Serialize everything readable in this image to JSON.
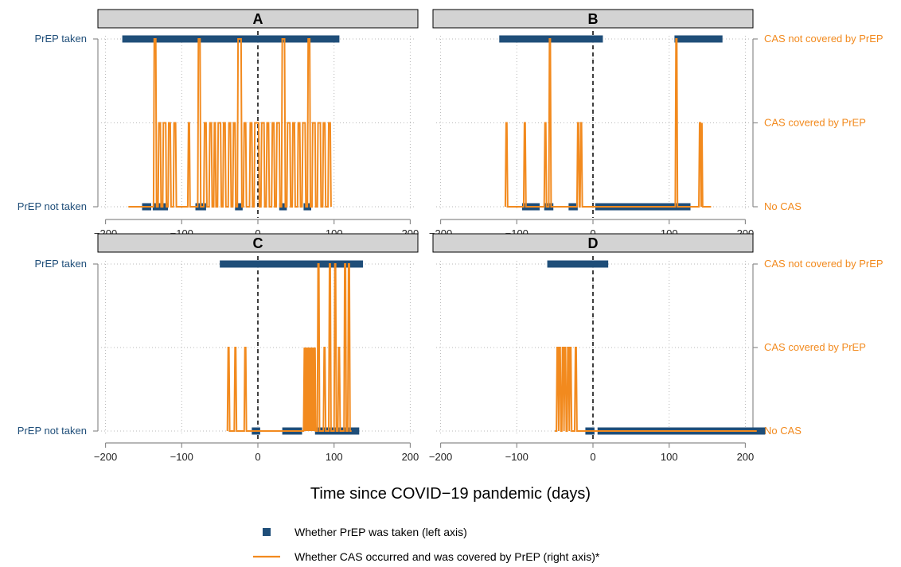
{
  "figure": {
    "x_axis_label": "Time since COVID−19 pandemic (days)",
    "x_ticks": [
      -200,
      -100,
      0,
      100,
      200
    ],
    "x_tick_labels": [
      "−200",
      "−100",
      "0",
      "100",
      "200"
    ],
    "xlim": [
      -210,
      210
    ],
    "left_axis": {
      "ticks": [
        {
          "value": 0,
          "label": "PrEP not taken"
        },
        {
          "value": 1,
          "label": "PrEP taken"
        }
      ]
    },
    "right_axis": {
      "ticks": [
        {
          "value": 0,
          "label": "No CAS"
        },
        {
          "value": 1,
          "label": "CAS covered by PrEP"
        },
        {
          "value": 2,
          "label": "CAS not covered by PrEP"
        }
      ]
    },
    "colors": {
      "prep": "#1f4e79",
      "cas": "#f28a1e",
      "strip_fill": "#d3d3d3",
      "left_tick_text": "#1f4e79",
      "right_tick_text": "#f28a1e"
    },
    "legend": {
      "items": [
        {
          "label": "Whether PrEP was taken (left axis)",
          "marker": "square",
          "color": "#1f4e79"
        },
        {
          "label": "Whether CAS occurred and was covered by PrEP (right axis)*",
          "marker": "line",
          "color": "#f28a1e"
        }
      ]
    }
  },
  "chart_data": [
    {
      "type": "line",
      "title": "A",
      "prep_taken_intervals": [
        [
          -178,
          107
        ]
      ],
      "prep_not_taken_intervals": [
        [
          -152,
          -140
        ],
        [
          -138,
          -118
        ],
        [
          -82,
          -68
        ],
        [
          -30,
          -20
        ],
        [
          28,
          38
        ],
        [
          60,
          70
        ]
      ],
      "cas_x": [
        -170,
        -137,
        -136,
        -134,
        -133,
        -131,
        -130,
        -128,
        -127,
        -125,
        -124,
        -121,
        -120,
        -118,
        -117,
        -115,
        -114,
        -111,
        -110,
        -108,
        -107,
        -92,
        -91,
        -90,
        -89,
        -79,
        -78,
        -76,
        -75,
        -71,
        -70,
        -68,
        -67,
        -64,
        -63,
        -61,
        -60,
        -58,
        -57,
        -56,
        -55,
        -53,
        -52,
        -49,
        -48,
        -46,
        -45,
        -43,
        -42,
        -39,
        -38,
        -36,
        -35,
        -33,
        -32,
        -30,
        -29,
        -27,
        -26,
        -22,
        -21,
        -19,
        -18,
        -16,
        -15,
        -11,
        -10,
        -8,
        -7,
        -5,
        -4,
        1,
        2,
        4,
        5,
        8,
        9,
        11,
        12,
        14,
        15,
        18,
        19,
        21,
        22,
        24,
        25,
        28,
        29,
        31,
        32,
        35,
        36,
        38,
        39,
        42,
        43,
        45,
        46,
        48,
        49,
        52,
        53,
        55,
        56,
        58,
        59,
        62,
        63,
        65,
        66,
        68,
        69,
        71,
        72,
        75,
        76,
        78,
        79,
        82,
        83,
        85,
        86,
        88,
        89,
        92,
        93,
        95,
        96,
        98,
        99
      ],
      "cas_y": [
        0,
        0,
        2,
        2,
        0,
        0,
        1,
        1,
        0,
        0,
        1,
        1,
        0,
        0,
        1,
        1,
        0,
        0,
        1,
        1,
        0,
        0,
        1,
        1,
        0,
        0,
        2,
        2,
        0,
        0,
        1,
        1,
        0,
        0,
        1,
        1,
        0,
        0,
        1,
        1,
        0,
        0,
        1,
        1,
        0,
        0,
        1,
        1,
        0,
        0,
        1,
        1,
        0,
        0,
        1,
        1,
        0,
        0,
        2,
        2,
        0,
        0,
        1,
        1,
        0,
        0,
        1,
        1,
        0,
        0,
        1,
        1,
        0,
        0,
        1,
        1,
        0,
        0,
        1,
        1,
        0,
        0,
        1,
        1,
        0,
        0,
        1,
        1,
        0,
        0,
        2,
        2,
        0,
        0,
        1,
        1,
        0,
        0,
        1,
        1,
        0,
        0,
        1,
        1,
        0,
        0,
        1,
        1,
        0,
        0,
        2,
        2,
        0,
        0,
        1,
        1,
        0,
        0,
        1,
        1,
        0,
        0,
        1,
        1,
        0,
        0,
        1,
        1,
        0
      ]
    },
    {
      "type": "line",
      "title": "B",
      "prep_taken_intervals": [
        [
          -123,
          13
        ],
        [
          107,
          170
        ]
      ],
      "prep_not_taken_intervals": [
        [
          -93,
          -70
        ],
        [
          -64,
          -52
        ],
        [
          -32,
          -20
        ],
        [
          3,
          128
        ]
      ],
      "cas_x": [
        -115,
        -114,
        -113,
        -112,
        -91,
        -90,
        -89,
        -88,
        -64,
        -63,
        -62,
        -61,
        -58,
        -57,
        -56,
        -55,
        -21,
        -20,
        -19,
        -18,
        -17,
        -16,
        -15,
        -14,
        108,
        109,
        110,
        111,
        139,
        140,
        141,
        142,
        143,
        144,
        155
      ],
      "cas_y": [
        0,
        1,
        1,
        0,
        0,
        1,
        1,
        0,
        0,
        1,
        1,
        0,
        0,
        2,
        2,
        0,
        0,
        1,
        1,
        0,
        0,
        1,
        1,
        0,
        0,
        2,
        2,
        0,
        0,
        1,
        1,
        0,
        1,
        0,
        0
      ]
    },
    {
      "type": "line",
      "title": "C",
      "prep_taken_intervals": [
        [
          -50,
          138
        ]
      ],
      "prep_not_taken_intervals": [
        [
          -8,
          3
        ],
        [
          32,
          58
        ],
        [
          75,
          133
        ]
      ],
      "cas_x": [
        -40,
        -39,
        -38,
        -37,
        -31,
        -30,
        -29,
        -28,
        -18,
        -17,
        -16,
        -15,
        60,
        61,
        62,
        63,
        64,
        65,
        66,
        67,
        68,
        69,
        70,
        71,
        72,
        73,
        74,
        75,
        76,
        78,
        79,
        80,
        81,
        86,
        87,
        88,
        89,
        93,
        94,
        95,
        96,
        100,
        101,
        102,
        103,
        105,
        106,
        107,
        108,
        113,
        114,
        115,
        116,
        118,
        119,
        120,
        121,
        123
      ],
      "cas_y": [
        0,
        1,
        1,
        0,
        0,
        1,
        1,
        0,
        0,
        1,
        1,
        0,
        0,
        1,
        0,
        1,
        0,
        1,
        0,
        1,
        0,
        1,
        0,
        1,
        0,
        1,
        0,
        1,
        0,
        0,
        2,
        2,
        0,
        0,
        1,
        1,
        0,
        0,
        2,
        2,
        0,
        0,
        2,
        2,
        0,
        0,
        1,
        1,
        0,
        0,
        2,
        2,
        0,
        0,
        2,
        2,
        0,
        0
      ]
    },
    {
      "type": "line",
      "title": "D",
      "prep_taken_intervals": [
        [
          -60,
          20
        ]
      ],
      "prep_not_taken_intervals": [
        [
          -10,
          2
        ],
        [
          6,
          226
        ]
      ],
      "cas_x": [
        -50,
        -48,
        -47,
        -46,
        -45,
        -44,
        -43,
        -42,
        -41,
        -40,
        -39,
        -38,
        -37,
        -36,
        -35,
        -34,
        -33,
        -32,
        -31,
        -30,
        -29,
        -28,
        -27,
        -24,
        -23,
        -22,
        -21,
        0,
        215
      ],
      "cas_y": [
        0,
        0,
        1,
        1,
        0,
        1,
        1,
        0,
        0,
        1,
        1,
        0,
        1,
        1,
        0,
        0,
        1,
        1,
        0,
        1,
        1,
        0,
        0,
        0,
        1,
        1,
        0,
        0,
        0
      ]
    }
  ]
}
